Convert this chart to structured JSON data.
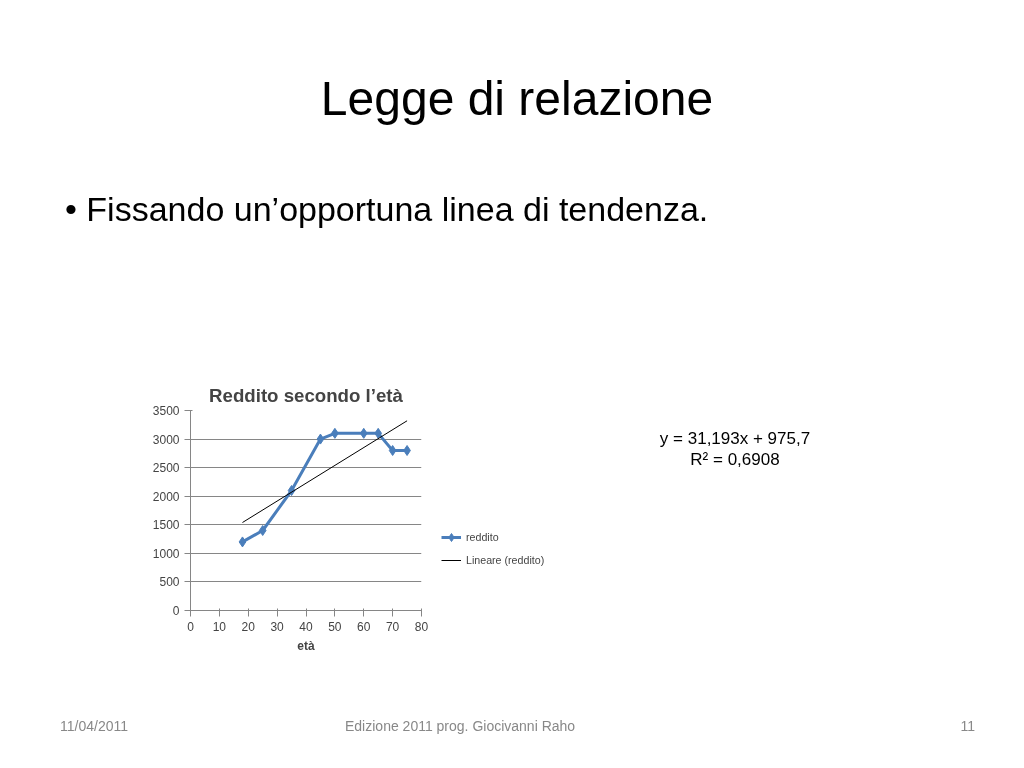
{
  "chart_data": {
    "type": "line",
    "title": "Reddito secondo l’età",
    "xlabel": "età",
    "x": [
      18,
      25,
      35,
      45,
      50,
      60,
      65,
      70,
      75
    ],
    "series": [
      {
        "name": "reddito",
        "color": "#4a7ebb",
        "values": [
          1200,
          1400,
          2100,
          3000,
          3100,
          3100,
          3100,
          2800,
          2800
        ],
        "marker": "diamond"
      },
      {
        "name": "Lineare (reddito)",
        "color": "#000000",
        "x": [
          18,
          75
        ],
        "values": [
          1540,
          3320
        ],
        "marker": "none"
      }
    ],
    "xlim": [
      0,
      80
    ],
    "xticks": [
      0,
      10,
      20,
      30,
      40,
      50,
      60,
      70,
      80
    ],
    "ylim": [
      0,
      3500
    ],
    "yticks": [
      0,
      500,
      1000,
      1500,
      2000,
      2500,
      3000,
      3500
    ],
    "grid": "y",
    "legend": "right",
    "annotations": [
      "Legge di relazione",
      "• Fissando un’opportuna linea di tendenza.",
      "y = 31,193x + 975,7",
      "R² = 0,6908",
      "11/04/2011",
      "Edizione 2011 prog. Giocivanni Raho",
      "11"
    ]
  }
}
